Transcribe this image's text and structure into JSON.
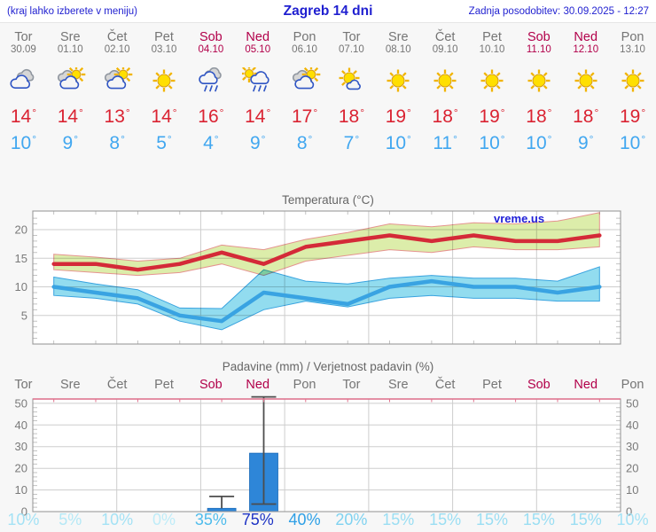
{
  "header": {
    "hint": "(kraj lahko izberete v meniju)",
    "title": "Zagreb 14 dni",
    "updated": "Zadnja posodobitev: 30.09.2025 - 12:27"
  },
  "days": [
    {
      "name": "Tor",
      "date": "30.09",
      "weekend": false,
      "icon": "cloudy",
      "tmax": "14",
      "tmin": "10",
      "prob": "10%",
      "prob_color": "#a4e2f5"
    },
    {
      "name": "Sre",
      "date": "01.10",
      "weekend": false,
      "icon": "partly-cloudy",
      "tmax": "14",
      "tmin": "9",
      "prob": "5%",
      "prob_color": "#b4e8f6"
    },
    {
      "name": "Čet",
      "date": "02.10",
      "weekend": false,
      "icon": "partly-cloudy",
      "tmax": "13",
      "tmin": "8",
      "prob": "10%",
      "prob_color": "#a4e2f5"
    },
    {
      "name": "Pet",
      "date": "03.10",
      "weekend": false,
      "icon": "sunny",
      "tmax": "14",
      "tmin": "5",
      "prob": "0%",
      "prob_color": "#bfecf8"
    },
    {
      "name": "Sob",
      "date": "04.10",
      "weekend": true,
      "icon": "rain",
      "tmax": "16",
      "tmin": "4",
      "prob": "35%",
      "prob_color": "#4fbcec"
    },
    {
      "name": "Ned",
      "date": "05.10",
      "weekend": true,
      "icon": "sun-rain",
      "tmax": "14",
      "tmin": "9",
      "prob": "75%",
      "prob_color": "#1d33c4"
    },
    {
      "name": "Pon",
      "date": "06.10",
      "weekend": false,
      "icon": "partly-cloudy",
      "tmax": "17",
      "tmin": "8",
      "prob": "40%",
      "prob_color": "#2d9fe6"
    },
    {
      "name": "Tor",
      "date": "07.10",
      "weekend": false,
      "icon": "mostly-sunny",
      "tmax": "18",
      "tmin": "7",
      "prob": "20%",
      "prob_color": "#7fd2f0"
    },
    {
      "name": "Sre",
      "date": "08.10",
      "weekend": false,
      "icon": "sunny",
      "tmax": "19",
      "tmin": "10",
      "prob": "15%",
      "prob_color": "#9adef3"
    },
    {
      "name": "Čet",
      "date": "09.10",
      "weekend": false,
      "icon": "sunny",
      "tmax": "18",
      "tmin": "11",
      "prob": "15%",
      "prob_color": "#9adef3"
    },
    {
      "name": "Pet",
      "date": "10.10",
      "weekend": false,
      "icon": "sunny",
      "tmax": "19",
      "tmin": "10",
      "prob": "15%",
      "prob_color": "#9adef3"
    },
    {
      "name": "Sob",
      "date": "11.10",
      "weekend": true,
      "icon": "sunny",
      "tmax": "18",
      "tmin": "10",
      "prob": "15%",
      "prob_color": "#9adef3"
    },
    {
      "name": "Ned",
      "date": "12.10",
      "weekend": true,
      "icon": "sunny",
      "tmax": "18",
      "tmin": "9",
      "prob": "15%",
      "prob_color": "#9adef3"
    },
    {
      "name": "Pon",
      "date": "13.10",
      "weekend": false,
      "icon": "sunny",
      "tmax": "19",
      "tmin": "10",
      "prob": "10%",
      "prob_color": "#a4e2f5"
    }
  ],
  "chart_data": [
    {
      "type": "line",
      "title": "Temperatura (°C)",
      "annotation": "vreme.us",
      "x_labels": [
        "Tor 30.09",
        "Sre 01.10",
        "Čet 02.10",
        "Pet 03.10",
        "Sob 04.10",
        "Ned 05.10",
        "Pon 06.10",
        "Tor 07.10",
        "Sre 08.10",
        "Čet 09.10",
        "Pet 10.10",
        "Sob 11.10",
        "Ned 12.10",
        "Pon 13.10"
      ],
      "ylim": [
        0,
        23.2
      ],
      "yticks": [
        5,
        10,
        15,
        20
      ],
      "grid": true,
      "series": [
        {
          "name": "tmax",
          "values": [
            14,
            14,
            13,
            14,
            16,
            14,
            17,
            18,
            19,
            18,
            19,
            18,
            18,
            19
          ]
        },
        {
          "name": "tmax_range_high",
          "values": [
            15.7,
            15.2,
            14.5,
            15,
            17.3,
            16.5,
            18.3,
            19.5,
            21,
            20.5,
            21.2,
            21,
            21.5,
            23
          ]
        },
        {
          "name": "tmax_range_low",
          "values": [
            13,
            12.5,
            12,
            12.5,
            14,
            12,
            14.5,
            15.5,
            16.5,
            16,
            17,
            16.5,
            16.5,
            17
          ]
        },
        {
          "name": "tmin",
          "values": [
            10,
            9,
            8,
            5,
            4,
            9,
            8,
            7,
            10,
            11,
            10,
            10,
            9,
            10
          ]
        },
        {
          "name": "tmin_range_high",
          "values": [
            11.7,
            10.5,
            9.5,
            6.3,
            6.2,
            13,
            11,
            10.5,
            11.5,
            12,
            11.5,
            11.5,
            11,
            13.5
          ]
        },
        {
          "name": "tmin_range_low",
          "values": [
            8.5,
            8,
            7,
            4,
            2.5,
            6,
            7.5,
            6.5,
            8,
            8.5,
            8,
            8,
            7.5,
            7.5
          ]
        }
      ]
    },
    {
      "type": "bar",
      "title": "Padavine (mm) / Verjetnost padavin (%)",
      "categories": [
        "Tor",
        "Sre",
        "Čet",
        "Pet",
        "Sob",
        "Ned",
        "Pon",
        "Tor",
        "Sre",
        "Čet",
        "Pet",
        "Sob",
        "Ned",
        "Pon"
      ],
      "values": [
        0,
        0,
        0,
        0,
        1.5,
        27,
        0,
        0,
        0,
        0,
        0,
        0,
        0,
        0
      ],
      "range_low": [
        null,
        null,
        null,
        null,
        1.5,
        3.5,
        null,
        null,
        null,
        null,
        null,
        null,
        null,
        null
      ],
      "range_high": [
        null,
        null,
        null,
        null,
        7,
        53,
        null,
        null,
        null,
        null,
        null,
        null,
        null,
        null
      ],
      "probability_pct": [
        10,
        5,
        10,
        0,
        35,
        75,
        40,
        20,
        15,
        15,
        15,
        15,
        15,
        10
      ],
      "ylim": [
        0,
        52
      ],
      "yticks": [
        0,
        10,
        20,
        30,
        40,
        50
      ],
      "grid": true
    }
  ],
  "colors": {
    "link_blue": "#1f1fd0",
    "day_gray": "#757575",
    "weekend_crimson": "#b2004a",
    "tmax_red": "#da2332",
    "tmin_blue": "#41a7f0",
    "chart_title_gray": "#666666",
    "axis_text_gray": "#7a7a7a",
    "grid_gray": "#cdcdcd",
    "frame_gray": "#9a9a9a",
    "line_red": "#d42a38",
    "line_blue": "#39a3e2",
    "band_green": "#dcedaa",
    "band_green_edge": "#e5938f",
    "band_cyan": "#92dcef",
    "band_cyan_edge": "#39a3df",
    "bar_blue": "#2e86d8",
    "bar_edge": "#1a6ab8",
    "whisker_gray": "#4d4d4d",
    "precip_topline_pink": "#e0708c",
    "page_bg": "#f7f7f7",
    "header_bg": "#ffffff"
  }
}
